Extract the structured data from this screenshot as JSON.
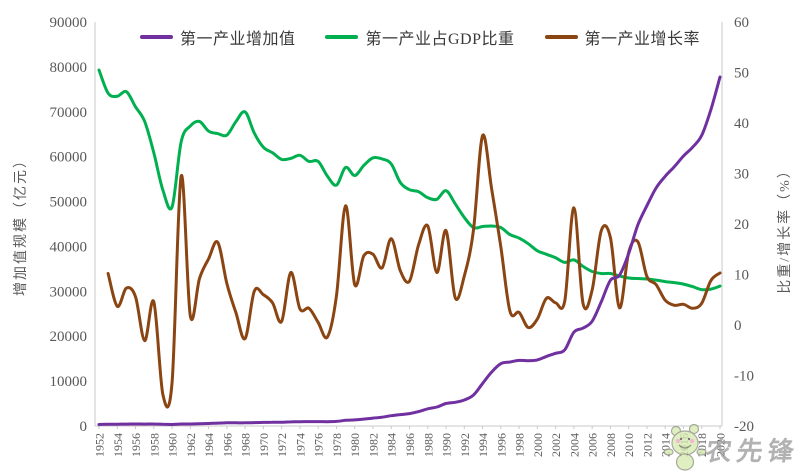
{
  "watermark": {
    "text": "农先锋"
  },
  "chart_data": {
    "type": "line",
    "title": "",
    "grid": false,
    "legend_position": "top",
    "axis_line_color": "#c9c9c9",
    "tick_text_color": "#595959",
    "x_years": [
      1952,
      1953,
      1954,
      1955,
      1956,
      1957,
      1958,
      1959,
      1960,
      1961,
      1962,
      1963,
      1964,
      1965,
      1966,
      1967,
      1968,
      1969,
      1970,
      1971,
      1972,
      1973,
      1974,
      1975,
      1976,
      1977,
      1978,
      1979,
      1980,
      1981,
      1982,
      1983,
      1984,
      1985,
      1986,
      1987,
      1988,
      1989,
      1990,
      1991,
      1992,
      1993,
      1994,
      1995,
      1996,
      1997,
      1998,
      1999,
      2000,
      2001,
      2002,
      2003,
      2004,
      2005,
      2006,
      2007,
      2008,
      2009,
      2010,
      2011,
      2012,
      2013,
      2014,
      2015,
      2016,
      2017,
      2018,
      2019,
      2020
    ],
    "x_tick_labels": [
      "1952",
      "1954",
      "1956",
      "1958",
      "1960",
      "1962",
      "1964",
      "1966",
      "1968",
      "1970",
      "1972",
      "1974",
      "1976",
      "1978",
      "1980",
      "1982",
      "1984",
      "1986",
      "1988",
      "1990",
      "1992",
      "1994",
      "1996",
      "1998",
      "2000",
      "2002",
      "2004",
      "2006",
      "2008",
      "2010",
      "2012",
      "2014",
      "2016",
      "2018",
      "2020"
    ],
    "left_axis": {
      "label": "增加值规模（亿元）",
      "min": 0,
      "max": 90000,
      "ticks": [
        "0",
        "10000",
        "20000",
        "30000",
        "40000",
        "50000",
        "60000",
        "70000",
        "80000",
        "90000"
      ]
    },
    "right_axis": {
      "label": "比重/增长率（%）",
      "min": -20,
      "max": 60,
      "ticks": [
        "-20",
        "-10",
        "0",
        "10",
        "20",
        "30",
        "40",
        "50",
        "60"
      ]
    },
    "series": [
      {
        "id": "added-value",
        "name": "第一产业增加值",
        "axis": "left",
        "color": "#7030A0",
        "values": [
          343,
          378,
          392,
          421,
          444,
          430,
          450,
          388,
          344,
          445,
          453,
          495,
          559,
          651,
          704,
          721,
          702,
          749,
          794,
          829,
          835,
          922,
          952,
          983,
          988,
          964,
          1019,
          1259,
          1360,
          1546,
          1762,
          1961,
          2296,
          2542,
          2764,
          3204,
          3831,
          4228,
          5017,
          5289,
          5800,
          6887,
          9471,
          12020,
          13886,
          14265,
          14618,
          14548,
          14716,
          15502,
          16190,
          16970,
          20904,
          21807,
          23317,
          27674,
          32464,
          33584,
          38431,
          44781,
          49085,
          53028,
          55626,
          57775,
          60139,
          62100,
          64745,
          70474,
          77754
        ]
      },
      {
        "id": "gdp-share",
        "name": "第一产业占GDP比重",
        "axis": "right",
        "color": "#00B050",
        "values": [
          50.5,
          45.9,
          45.3,
          46.2,
          43.2,
          40.3,
          34.1,
          26.7,
          23.4,
          36.3,
          39.4,
          40.3,
          38.4,
          37.9,
          37.6,
          40.3,
          42.2,
          38.0,
          35.2,
          34.1,
          32.8,
          33.0,
          33.6,
          32.4,
          32.4,
          29.5,
          27.7,
          31.2,
          29.6,
          31.6,
          33.1,
          32.9,
          31.9,
          28.2,
          26.8,
          26.4,
          25.2,
          24.9,
          26.6,
          24.0,
          21.3,
          19.3,
          19.5,
          19.6,
          19.3,
          17.9,
          17.2,
          16.1,
          14.7,
          14.0,
          13.3,
          12.4,
          12.9,
          11.6,
          10.6,
          10.2,
          10.2,
          9.7,
          9.3,
          9.2,
          9.1,
          8.9,
          8.6,
          8.4,
          8.1,
          7.6,
          7.0,
          7.1,
          7.7
        ]
      },
      {
        "id": "growth-rate",
        "name": "第一产业增长率",
        "axis": "right",
        "color": "#8B4513",
        "values": [
          null,
          10.2,
          3.7,
          7.3,
          5.6,
          -3.1,
          4.6,
          -13.8,
          -11.3,
          29.5,
          1.8,
          9.2,
          13.1,
          16.4,
          8.2,
          2.4,
          -2.7,
          6.7,
          6.0,
          4.4,
          0.7,
          10.4,
          3.2,
          3.3,
          0.5,
          -2.4,
          5.7,
          23.6,
          8.0,
          13.7,
          14.0,
          11.3,
          17.1,
          10.7,
          8.7,
          15.9,
          19.6,
          10.4,
          18.7,
          5.4,
          9.7,
          18.7,
          37.5,
          26.9,
          15.5,
          2.7,
          2.5,
          -0.5,
          1.2,
          5.3,
          4.4,
          4.8,
          23.2,
          4.3,
          6.9,
          18.7,
          17.3,
          3.4,
          14.4,
          16.5,
          9.6,
          8.0,
          4.9,
          3.9,
          4.1,
          3.3,
          4.3,
          8.8,
          10.3
        ]
      }
    ]
  }
}
